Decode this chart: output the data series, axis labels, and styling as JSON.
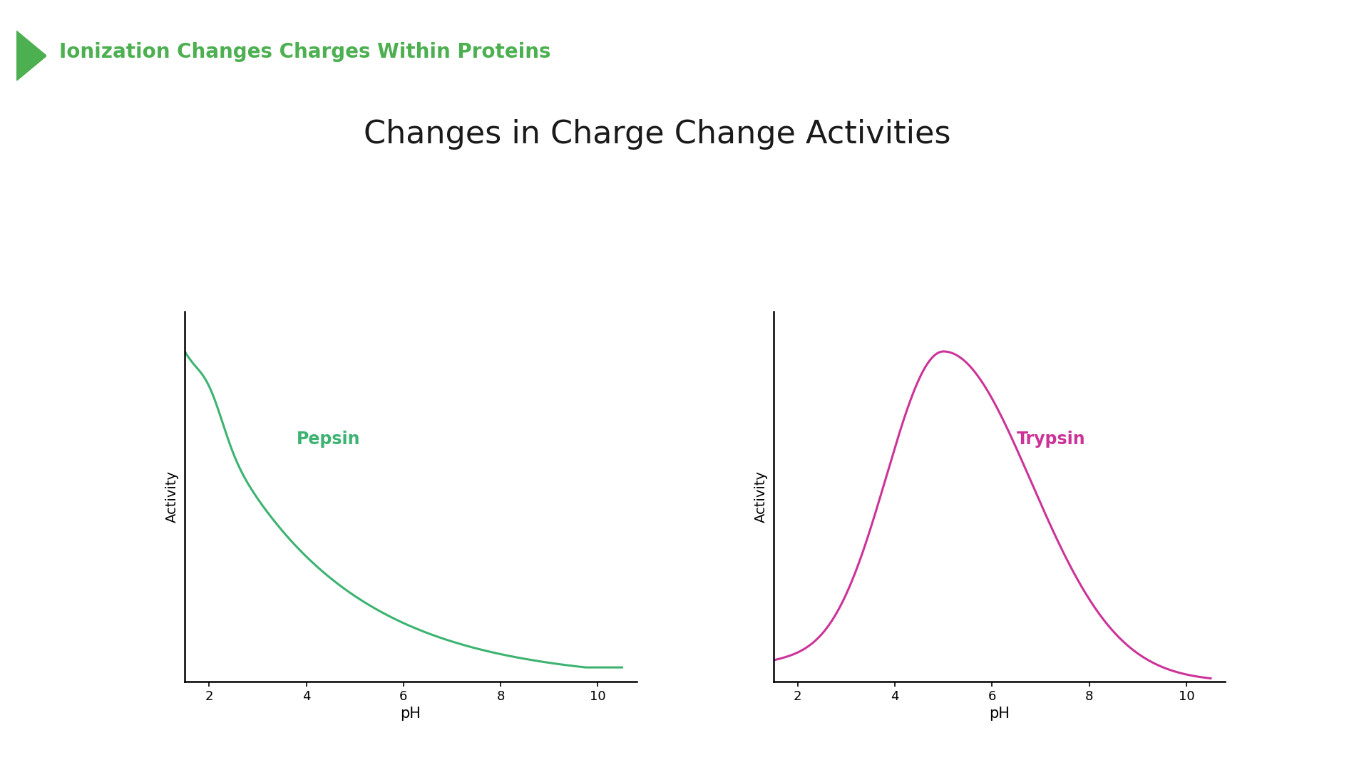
{
  "title": "Changes in Charge Change Activities",
  "header": "Ionization Changes Charges Within Proteins",
  "header_color": "#4CAF50",
  "title_fontsize": 32,
  "header_fontsize": 20,
  "background_color": "#ffffff",
  "pepsin_color": "#3CB371",
  "trypsin_color": "#CC3399",
  "pepsin_label": "Pepsin",
  "trypsin_label": "Trypsin",
  "ylabel": "Activity",
  "xlabel": "pH",
  "xticks": [
    2,
    4,
    6,
    8,
    10
  ],
  "panel_bg": "#ffffff",
  "arrow_color": "#4CAF50"
}
